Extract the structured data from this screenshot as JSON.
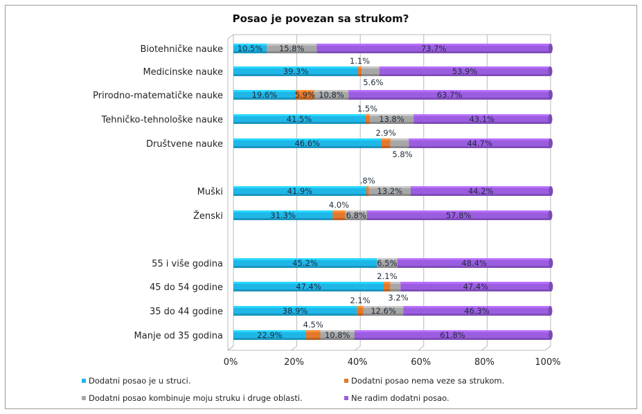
{
  "chart_data": {
    "type": "bar",
    "orientation": "horizontal",
    "stacked": "percent",
    "title": "Posao je povezan sa strukom?",
    "categories": [
      "Biotehničke nauke",
      "Medicinske nauke",
      "Prirodno-matematičke nauke",
      "Tehničko-tehnološke nauke",
      "Društvene nauke",
      "Muški",
      "Ženski",
      "55 i više godina",
      "45 do 54 godine",
      "35 do 44 godine",
      "Manje od 35 godina"
    ],
    "series": [
      {
        "name": "Dodatni posao je u struci.",
        "color": "#1fb6e8",
        "values": [
          10.5,
          39.3,
          19.6,
          41.5,
          46.6,
          41.9,
          31.3,
          45.2,
          47.4,
          38.9,
          22.9
        ],
        "labels": [
          "10.5%",
          "39.3%",
          "19.6%",
          "41.5%",
          "46.6%",
          "41.9%",
          "31.3%",
          "45.2%",
          "47.4%",
          "38.9%",
          "22.9%"
        ]
      },
      {
        "name": "Dodatni posao nema veze sa strukom.",
        "color": "#e2782b",
        "values": [
          0,
          1.1,
          5.9,
          1.5,
          2.9,
          0.8,
          4.0,
          0,
          2.1,
          2.1,
          4.5
        ],
        "labels": [
          "",
          "1.1%",
          "5.9%",
          "1.5%",
          "2.9%",
          ".8%",
          "4.0%",
          "",
          "2.1%",
          "2.1%",
          "4.5%"
        ]
      },
      {
        "name": "Dodatni posao kombinuje moju struku i druge oblasti.",
        "color": "#a7a7a7",
        "values": [
          15.8,
          5.6,
          10.8,
          13.8,
          5.8,
          13.2,
          6.8,
          6.5,
          3.2,
          12.6,
          10.8
        ],
        "labels": [
          "15.8%",
          "5.6%",
          "10.8%",
          "13.8%",
          "5.8%",
          "13.2%",
          "6.8%",
          "6.5%",
          "3.2%",
          "12.6%",
          "10.8%"
        ]
      },
      {
        "name": "Ne radim dodatni posao.",
        "color": "#9b5de0",
        "values": [
          73.7,
          53.9,
          63.7,
          43.1,
          44.7,
          44.2,
          57.8,
          48.4,
          47.4,
          46.3,
          61.8
        ],
        "labels": [
          "73.7%",
          "53.9%",
          "63.7%",
          "43.1%",
          "44.7%",
          "44.2%",
          "57.8%",
          "48.4%",
          "47.4%",
          "46.3%",
          "61.8%"
        ]
      }
    ],
    "xlim": [
      0,
      100
    ],
    "x_ticks": [
      "0%",
      "20%",
      "40%",
      "60%",
      "80%",
      "100%"
    ],
    "grid": true,
    "legend": "bottom"
  }
}
